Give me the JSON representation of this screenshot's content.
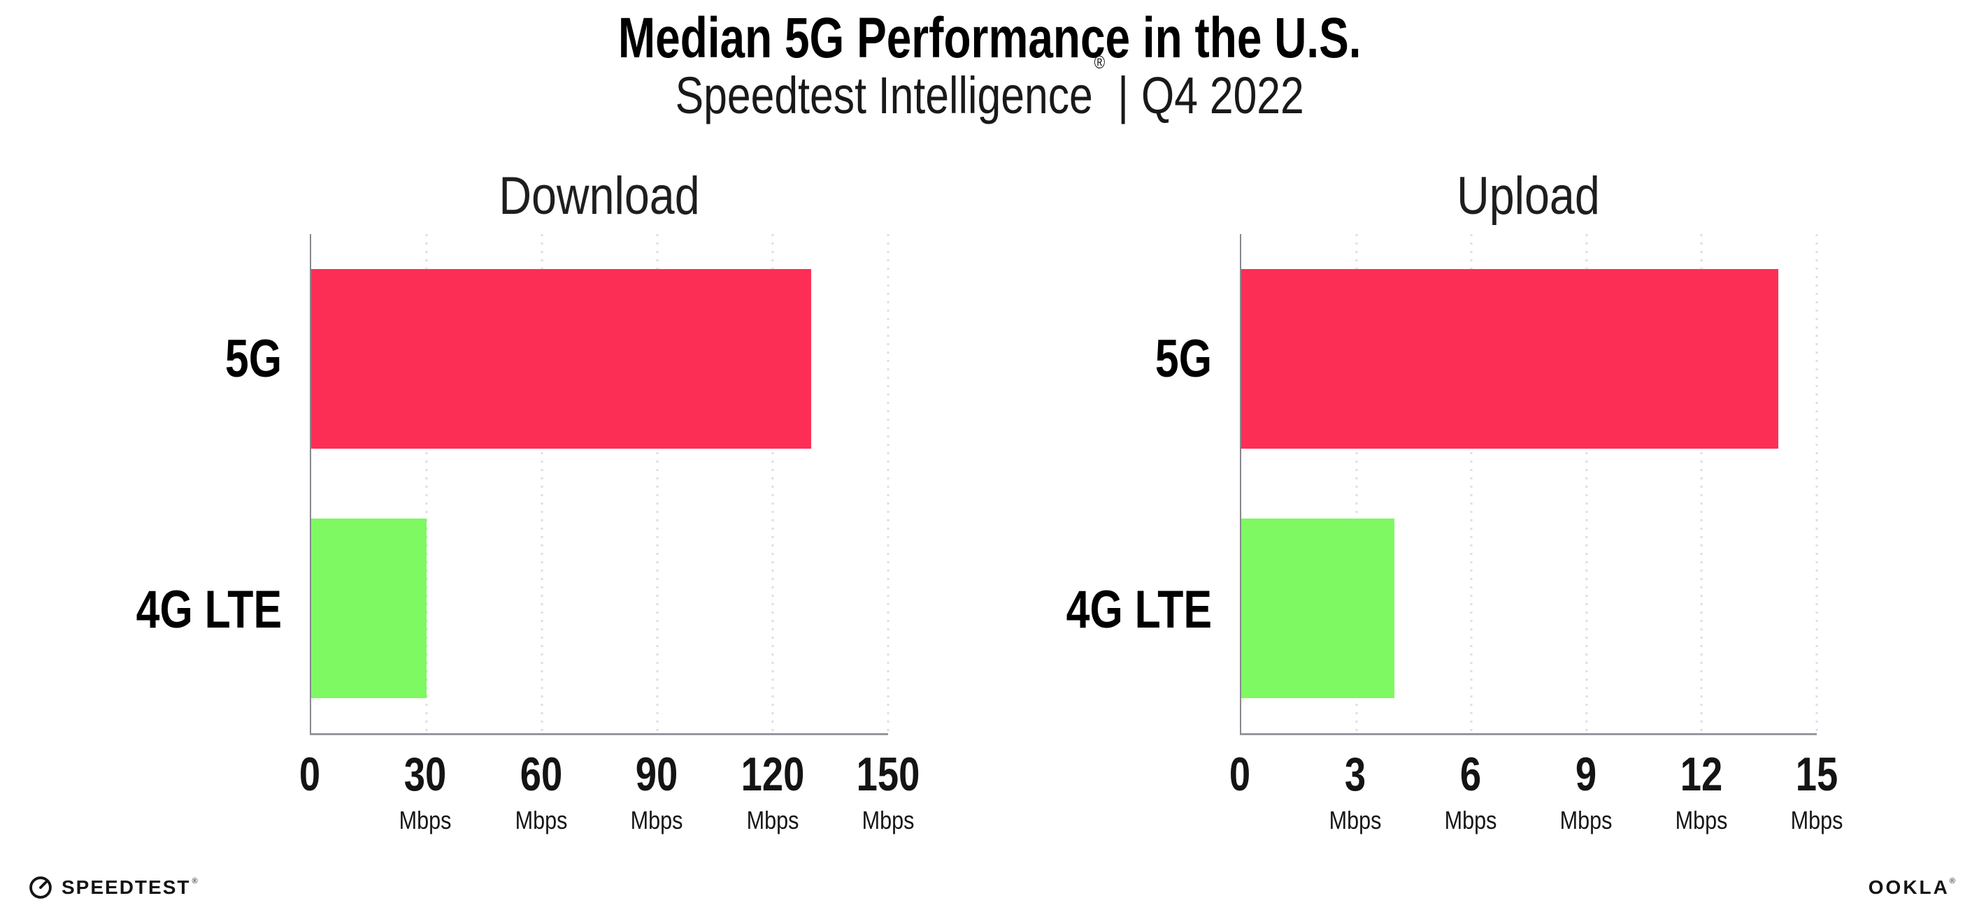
{
  "header": {
    "title": "Median 5G Performance in the U.S.",
    "subtitle_brand": "Speedtest Intelligence",
    "subtitle_reg": "®",
    "subtitle_sep": "|",
    "subtitle_period": "Q4 2022"
  },
  "colors": {
    "bar_5g": "#FD2E55",
    "bar_4g_lte": "#7EF962",
    "gridline_dot": "#DDDDE9",
    "axis": "#97979F"
  },
  "chart_data": [
    {
      "type": "bar",
      "orientation": "horizontal",
      "title": "Download",
      "categories": [
        "5G",
        "4G LTE"
      ],
      "values": [
        130,
        30
      ],
      "unit": "Mbps",
      "xlim": [
        0,
        150
      ],
      "ticks": [
        0,
        30,
        60,
        90,
        120,
        150
      ],
      "tick_unit": "Mbps",
      "grid": "dotted-vertical",
      "colors": [
        "#FD2E55",
        "#7EF962"
      ]
    },
    {
      "type": "bar",
      "orientation": "horizontal",
      "title": "Upload",
      "categories": [
        "5G",
        "4G LTE"
      ],
      "values": [
        14,
        4
      ],
      "unit": "Mbps",
      "xlim": [
        0,
        15
      ],
      "ticks": [
        0,
        3,
        6,
        9,
        12,
        15
      ],
      "tick_unit": "Mbps",
      "grid": "dotted-vertical",
      "colors": [
        "#FD2E55",
        "#7EF962"
      ]
    }
  ],
  "footer": {
    "speedtest_label": "SPEEDTEST",
    "speedtest_tm": "®",
    "ookla_label": "OOKLA",
    "ookla_reg": "®"
  }
}
